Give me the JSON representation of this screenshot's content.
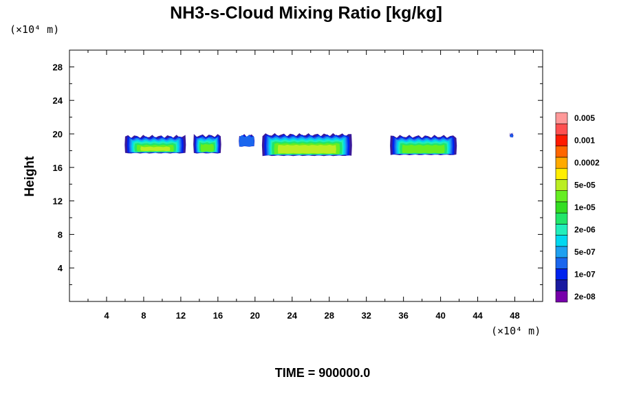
{
  "chart_data": {
    "type": "contour",
    "title": "NH3-s-Cloud Mixing Ratio [kg/kg]",
    "ylabel": "Height",
    "x_unit": "(×10⁴ m)",
    "y_unit": "(×10⁴ m)",
    "xlim": [
      0,
      51
    ],
    "ylim": [
      0,
      30
    ],
    "x_ticks": [
      4,
      8,
      12,
      16,
      20,
      24,
      28,
      32,
      36,
      40,
      44,
      48
    ],
    "y_ticks": [
      4,
      8,
      12,
      16,
      20,
      24,
      28
    ],
    "time_label": "TIME = 900000.0",
    "colorbar": {
      "colors": [
        "#7700aa",
        "#1a1aa0",
        "#0022ee",
        "#1a66ee",
        "#1ea0f0",
        "#00d8f0",
        "#22eebb",
        "#22e66a",
        "#33dd22",
        "#66ee22",
        "#bbee22",
        "#ffee00",
        "#ffaa00",
        "#ff6600",
        "#ff1a00",
        "#ff5050",
        "#ff9999"
      ],
      "labels": [
        "2e-08",
        "1e-07",
        "5e-07",
        "2e-06",
        "1e-05",
        "5e-05",
        "0.0002",
        "0.001",
        "0.005"
      ]
    },
    "clouds": [
      {
        "x0": 6.0,
        "x1": 12.5,
        "top": 19.7,
        "bottom": 17.7,
        "core": 0.8
      },
      {
        "x0": 13.4,
        "x1": 16.3,
        "top": 19.8,
        "bottom": 17.7,
        "core": 0.6
      },
      {
        "x0": 18.3,
        "x1": 19.9,
        "top": 19.8,
        "bottom": 18.5,
        "core": 0.0
      },
      {
        "x0": 20.8,
        "x1": 30.4,
        "top": 19.9,
        "bottom": 17.4,
        "core": 0.9
      },
      {
        "x0": 34.6,
        "x1": 41.7,
        "top": 19.7,
        "bottom": 17.5,
        "core": 0.6
      },
      {
        "x0": 47.5,
        "x1": 47.8,
        "top": 20.0,
        "bottom": 19.6,
        "core": 0.0
      }
    ]
  }
}
